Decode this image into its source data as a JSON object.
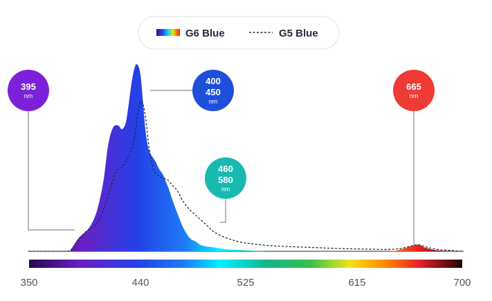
{
  "chart_data": {
    "type": "area",
    "x_unit": "nm",
    "xlim": [
      350,
      700
    ],
    "x_ticks": [
      "350",
      "440",
      "525",
      "615",
      "700"
    ],
    "grid": false,
    "legend_placement": "top-center",
    "legend": {
      "g6_label": "G6 Blue",
      "g5_label": "G5 Blue"
    },
    "series": [
      {
        "name": "G6 Blue",
        "style": "gradient-filled area",
        "x": [
          383,
          385,
          390,
          395,
          400,
          405,
          410,
          414,
          418,
          422,
          425,
          428,
          430,
          432,
          434,
          436,
          438,
          440,
          442,
          444,
          446,
          448,
          450,
          452,
          455,
          458,
          460,
          463,
          466,
          470,
          475,
          480,
          485,
          490,
          500,
          510,
          525,
          545,
          570,
          600,
          640,
          650,
          660,
          665,
          670,
          680,
          700
        ],
        "y": [
          0.0,
          0.02,
          0.07,
          0.1,
          0.14,
          0.22,
          0.37,
          0.57,
          0.66,
          0.67,
          0.65,
          0.68,
          0.76,
          0.86,
          0.94,
          0.99,
          0.99,
          0.94,
          0.8,
          0.65,
          0.56,
          0.52,
          0.5,
          0.48,
          0.44,
          0.41,
          0.38,
          0.33,
          0.27,
          0.2,
          0.12,
          0.07,
          0.05,
          0.03,
          0.02,
          0.01,
          0.005,
          0.0,
          0.0,
          0.0,
          0.0,
          0.01,
          0.03,
          0.035,
          0.02,
          0.005,
          0.0
        ]
      },
      {
        "name": "G5 Blue",
        "style": "dashed line",
        "x": [
          350,
          380,
          385,
          390,
          395,
          400,
          405,
          410,
          415,
          420,
          425,
          430,
          435,
          438,
          441,
          444,
          447,
          450,
          452,
          455,
          458,
          462,
          466,
          470,
          475,
          480,
          485,
          490,
          495,
          500,
          510,
          520,
          530,
          545,
          560,
          580,
          600,
          620,
          640,
          650,
          660,
          665,
          670,
          680,
          700
        ],
        "y": [
          0.0,
          0.0,
          0.02,
          0.06,
          0.1,
          0.12,
          0.15,
          0.22,
          0.32,
          0.42,
          0.45,
          0.5,
          0.6,
          0.74,
          0.8,
          0.72,
          0.55,
          0.45,
          0.42,
          0.4,
          0.39,
          0.38,
          0.35,
          0.32,
          0.26,
          0.22,
          0.19,
          0.16,
          0.13,
          0.1,
          0.07,
          0.05,
          0.04,
          0.03,
          0.025,
          0.02,
          0.015,
          0.012,
          0.01,
          0.015,
          0.03,
          0.035,
          0.025,
          0.01,
          0.0
        ]
      }
    ],
    "callouts": [
      {
        "lines": [
          "395"
        ],
        "unit": "nm",
        "wavelength": 395,
        "color": "#7b22d9"
      },
      {
        "lines": [
          "400",
          "450"
        ],
        "unit": "nm",
        "wavelength": 410,
        "color": "#1d4fd9"
      },
      {
        "lines": [
          "460",
          "580"
        ],
        "unit": "nm",
        "wavelength": 490,
        "color": "#19b9b0"
      },
      {
        "lines": [
          "665"
        ],
        "unit": "nm",
        "wavelength": 665,
        "color": "#ee3b35"
      }
    ],
    "colors": {
      "violet": "#3d0a7a",
      "blue": "#1e5cf0",
      "cyan": "#00f0ff",
      "green": "#1ec85a",
      "yellow": "#f0e000",
      "orange": "#ff8a00",
      "red": "#e8202a",
      "deep_red": "#2a0608",
      "dashed_line": "#1f2a36"
    }
  }
}
